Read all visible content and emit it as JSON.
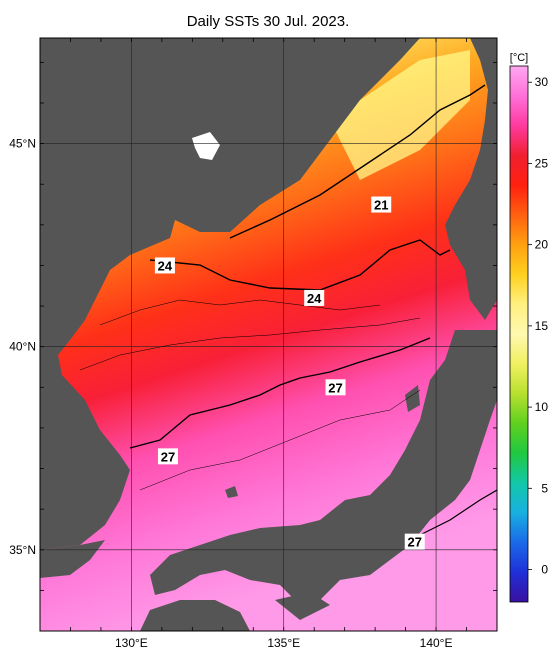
{
  "title": "Daily SSTs 30 Jul. 2023.",
  "map": {
    "lon_range": [
      127,
      142
    ],
    "lat_range": [
      33,
      47.6
    ],
    "lon_ticks": [
      {
        "value": 130,
        "label": "130°E"
      },
      {
        "value": 135,
        "label": "135°E"
      },
      {
        "value": 140,
        "label": "140°E"
      }
    ],
    "lat_ticks": [
      {
        "value": 45,
        "label": "45°N"
      },
      {
        "value": 40,
        "label": "40°N"
      },
      {
        "value": 35,
        "label": "35°N"
      }
    ],
    "contour_labels": [
      {
        "text": "21",
        "lon": 138.2,
        "lat": 43.5
      },
      {
        "text": "24",
        "lon": 131.1,
        "lat": 42.0
      },
      {
        "text": "24",
        "lon": 136.0,
        "lat": 41.2
      },
      {
        "text": "27",
        "lon": 136.7,
        "lat": 39.0
      },
      {
        "text": "27",
        "lon": 131.2,
        "lat": 37.3
      },
      {
        "text": "27",
        "lon": 139.3,
        "lat": 35.2
      }
    ],
    "land_color": "#555555"
  },
  "colorbar": {
    "unit": "[°C]",
    "min": -2,
    "max": 31,
    "ticks": [
      "0",
      "5",
      "10",
      "15",
      "20",
      "25",
      "30"
    ],
    "tick_values": [
      0,
      5,
      10,
      15,
      20,
      25,
      30
    ],
    "colors": [
      "#3a10a0",
      "#1f30d8",
      "#1a6ae8",
      "#18b0e0",
      "#12c8a8",
      "#20c840",
      "#60d020",
      "#b8e030",
      "#f0f060",
      "#fff8b0",
      "#fff080",
      "#ffd020",
      "#ffa010",
      "#ff6010",
      "#ff2010",
      "#f02030",
      "#ff3aa0",
      "#ff70d8",
      "#ffa8f0"
    ]
  }
}
